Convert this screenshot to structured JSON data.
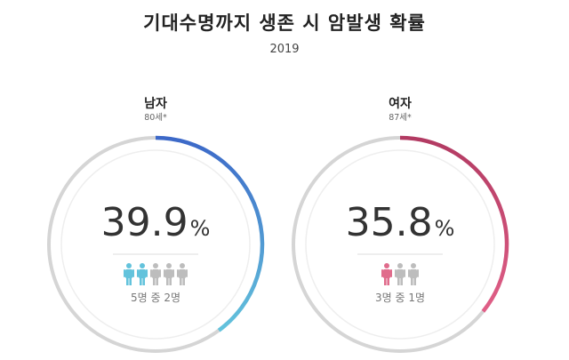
{
  "title": "기대수명까지 생존 시 암발생 확률",
  "subtitle": "2019",
  "chart_data": [
    {
      "type": "pie",
      "label": "남자",
      "age_note": "80세*",
      "value": 39.9,
      "value_text": "39.9",
      "unit": "%",
      "ratio_text": "5명 중 2명",
      "people_total": 5,
      "people_highlighted": 2,
      "gradient": [
        "#3c68c8",
        "#63c3dc"
      ],
      "highlight_color": "#63c3dc"
    },
    {
      "type": "pie",
      "label": "여자",
      "age_note": "87세*",
      "value": 35.8,
      "value_text": "35.8",
      "unit": "%",
      "ratio_text": "3명 중 1명",
      "people_total": 3,
      "people_highlighted": 1,
      "gradient": [
        "#b23a62",
        "#e05f87"
      ],
      "highlight_color": "#e06c8c"
    }
  ],
  "colors": {
    "track": "#d5d5d5",
    "inner_ring": "#eeeeee",
    "person_gray": "#bdbdbd"
  }
}
